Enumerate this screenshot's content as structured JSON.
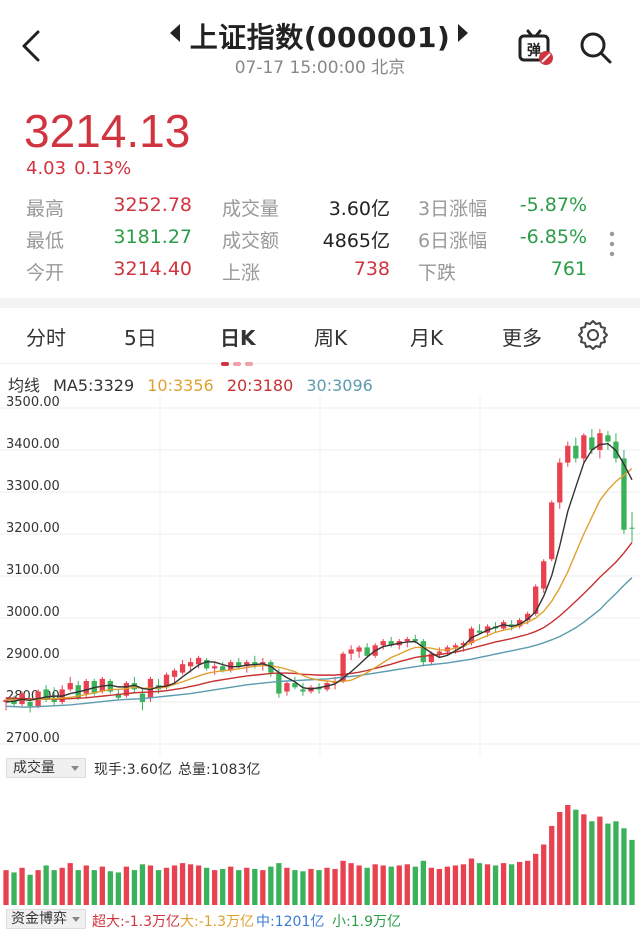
{
  "header": {
    "title": "上证指数(000001)",
    "datetime": "07-17 15:00:00 北京",
    "danmu_label": "弹"
  },
  "quote": {
    "price": "3214.13",
    "change": "4.03",
    "change_pct": "0.13%"
  },
  "stats": [
    [
      {
        "label": "最高",
        "value": "3252.78",
        "color": "red"
      },
      {
        "label": "成交量",
        "value": "3.60亿",
        "color": "dark"
      },
      {
        "label": "3日涨幅",
        "value": "-5.87%",
        "color": "green"
      }
    ],
    [
      {
        "label": "最低",
        "value": "3181.27",
        "color": "green"
      },
      {
        "label": "成交额",
        "value": "4865亿",
        "color": "dark"
      },
      {
        "label": "6日涨幅",
        "value": "-6.85%",
        "color": "green"
      }
    ],
    [
      {
        "label": "今开",
        "value": "3214.40",
        "color": "red"
      },
      {
        "label": "上涨",
        "value": "738",
        "color": "red"
      },
      {
        "label": "下跌",
        "value": "761",
        "color": "green"
      }
    ]
  ],
  "tabs": [
    {
      "label": "分时",
      "active": false
    },
    {
      "label": "5日",
      "active": false
    },
    {
      "label": "日K",
      "active": true
    },
    {
      "label": "周K",
      "active": false
    },
    {
      "label": "月K",
      "active": false
    },
    {
      "label": "更多",
      "active": false
    }
  ],
  "ma_legend": {
    "title": "均线",
    "items": [
      {
        "text": "MA5:3329",
        "color": "#333333"
      },
      {
        "text": "10:3356",
        "color": "#e0a030"
      },
      {
        "text": "20:3180",
        "color": "#c83030"
      },
      {
        "text": "30:3096",
        "color": "#5b9bb0"
      }
    ]
  },
  "colors": {
    "up": "#e8414f",
    "down": "#3ab25a",
    "red_text": "#d0343f",
    "green_text": "#2a9d47"
  },
  "chart_data": {
    "type": "candlestick",
    "y_ticks": [
      "3500.00",
      "3400.00",
      "3300.00",
      "3200.00",
      "3100.00",
      "3000.00",
      "2900.00",
      "2800.00",
      "2700.00"
    ],
    "ylim": [
      2700,
      3500
    ],
    "ohlc": [
      [
        2800,
        2810,
        2780,
        2805
      ],
      [
        2810,
        2815,
        2790,
        2795
      ],
      [
        2795,
        2825,
        2790,
        2820
      ],
      [
        2800,
        2810,
        2775,
        2790
      ],
      [
        2790,
        2830,
        2785,
        2825
      ],
      [
        2830,
        2840,
        2800,
        2805
      ],
      [
        2810,
        2835,
        2790,
        2800
      ],
      [
        2800,
        2840,
        2795,
        2830
      ],
      [
        2830,
        2860,
        2825,
        2845
      ],
      [
        2840,
        2850,
        2805,
        2810
      ],
      [
        2820,
        2855,
        2810,
        2850
      ],
      [
        2850,
        2855,
        2815,
        2820
      ],
      [
        2825,
        2860,
        2820,
        2855
      ],
      [
        2850,
        2855,
        2820,
        2825
      ],
      [
        2820,
        2830,
        2805,
        2810
      ],
      [
        2815,
        2850,
        2810,
        2845
      ],
      [
        2845,
        2860,
        2820,
        2830
      ],
      [
        2820,
        2835,
        2780,
        2800
      ],
      [
        2810,
        2860,
        2800,
        2855
      ],
      [
        2840,
        2855,
        2820,
        2830
      ],
      [
        2835,
        2870,
        2830,
        2865
      ],
      [
        2860,
        2880,
        2845,
        2875
      ],
      [
        2870,
        2900,
        2865,
        2890
      ],
      [
        2885,
        2905,
        2870,
        2895
      ],
      [
        2890,
        2910,
        2880,
        2905
      ],
      [
        2900,
        2905,
        2875,
        2880
      ],
      [
        2880,
        2895,
        2865,
        2885
      ],
      [
        2885,
        2895,
        2870,
        2875
      ],
      [
        2875,
        2900,
        2870,
        2895
      ],
      [
        2895,
        2905,
        2880,
        2885
      ],
      [
        2885,
        2900,
        2870,
        2895
      ],
      [
        2895,
        2910,
        2880,
        2890
      ],
      [
        2890,
        2905,
        2875,
        2895
      ],
      [
        2895,
        2900,
        2860,
        2870
      ],
      [
        2870,
        2880,
        2810,
        2820
      ],
      [
        2825,
        2850,
        2815,
        2845
      ],
      [
        2845,
        2860,
        2830,
        2835
      ],
      [
        2830,
        2845,
        2815,
        2825
      ],
      [
        2825,
        2840,
        2820,
        2835
      ],
      [
        2835,
        2845,
        2820,
        2830
      ],
      [
        2830,
        2850,
        2825,
        2845
      ],
      [
        2845,
        2860,
        2830,
        2850
      ],
      [
        2850,
        2920,
        2845,
        2915
      ],
      [
        2915,
        2935,
        2900,
        2925
      ],
      [
        2920,
        2935,
        2905,
        2930
      ],
      [
        2930,
        2940,
        2905,
        2910
      ],
      [
        2910,
        2940,
        2905,
        2935
      ],
      [
        2935,
        2950,
        2925,
        2945
      ],
      [
        2945,
        2955,
        2930,
        2935
      ],
      [
        2935,
        2950,
        2925,
        2945
      ],
      [
        2945,
        2955,
        2930,
        2950
      ],
      [
        2950,
        2960,
        2940,
        2945
      ],
      [
        2945,
        2950,
        2885,
        2895
      ],
      [
        2895,
        2920,
        2890,
        2915
      ],
      [
        2915,
        2930,
        2905,
        2920
      ],
      [
        2920,
        2935,
        2910,
        2930
      ],
      [
        2930,
        2940,
        2915,
        2935
      ],
      [
        2935,
        2945,
        2920,
        2940
      ],
      [
        2940,
        2980,
        2935,
        2975
      ],
      [
        2970,
        2985,
        2960,
        2965
      ],
      [
        2965,
        2985,
        2955,
        2980
      ],
      [
        2980,
        2990,
        2965,
        2975
      ],
      [
        2975,
        2995,
        2970,
        2990
      ],
      [
        2985,
        2995,
        2970,
        2980
      ],
      [
        2980,
        3000,
        2975,
        2995
      ],
      [
        2995,
        3015,
        2985,
        3010
      ],
      [
        3010,
        3080,
        3005,
        3075
      ],
      [
        3070,
        3140,
        3060,
        3135
      ],
      [
        3140,
        3280,
        3135,
        3275
      ],
      [
        3275,
        3380,
        3260,
        3370
      ],
      [
        3370,
        3420,
        3360,
        3410
      ],
      [
        3410,
        3430,
        3370,
        3380
      ],
      [
        3380,
        3440,
        3370,
        3435
      ],
      [
        3430,
        3450,
        3390,
        3400
      ],
      [
        3400,
        3450,
        3380,
        3440
      ],
      [
        3435,
        3445,
        3400,
        3420
      ],
      [
        3420,
        3440,
        3370,
        3380
      ],
      [
        3380,
        3400,
        3200,
        3210
      ],
      [
        3215,
        3253,
        3181,
        3214
      ]
    ],
    "ma5": [
      2800,
      2802,
      2806,
      2804,
      2808,
      2812,
      2814,
      2814,
      2820,
      2824,
      2829,
      2834,
      2838,
      2840,
      2836,
      2836,
      2840,
      2832,
      2830,
      2836,
      2838,
      2845,
      2860,
      2874,
      2888,
      2896,
      2895,
      2889,
      2884,
      2884,
      2888,
      2889,
      2891,
      2885,
      2870,
      2858,
      2848,
      2834,
      2831,
      2834,
      2838,
      2843,
      2857,
      2872,
      2889,
      2907,
      2922,
      2932,
      2936,
      2940,
      2943,
      2944,
      2930,
      2917,
      2906,
      2911,
      2922,
      2933,
      2953,
      2962,
      2971,
      2978,
      2984,
      2980,
      2985,
      2997,
      3015,
      3052,
      3101,
      3172,
      3254,
      3312,
      3369,
      3400,
      3413,
      3415,
      3399,
      3366,
      3329
    ],
    "ma10": [
      2805,
      2805,
      2805,
      2806,
      2806,
      2807,
      2808,
      2809,
      2811,
      2814,
      2818,
      2822,
      2826,
      2830,
      2830,
      2832,
      2835,
      2833,
      2833,
      2833,
      2836,
      2842,
      2848,
      2855,
      2862,
      2868,
      2872,
      2874,
      2876,
      2879,
      2882,
      2885,
      2887,
      2886,
      2883,
      2878,
      2872,
      2863,
      2856,
      2852,
      2850,
      2848,
      2849,
      2852,
      2860,
      2870,
      2882,
      2894,
      2906,
      2914,
      2923,
      2930,
      2930,
      2928,
      2924,
      2924,
      2928,
      2932,
      2942,
      2950,
      2958,
      2966,
      2971,
      2975,
      2983,
      2990,
      3000,
      3016,
      3040,
      3072,
      3110,
      3155,
      3200,
      3240,
      3280,
      3305,
      3325,
      3340,
      3356
    ],
    "ma20": [
      2810,
      2809,
      2808,
      2808,
      2807,
      2807,
      2807,
      2807,
      2808,
      2809,
      2810,
      2812,
      2814,
      2816,
      2818,
      2820,
      2822,
      2823,
      2824,
      2825,
      2827,
      2830,
      2833,
      2837,
      2841,
      2846,
      2850,
      2853,
      2856,
      2859,
      2862,
      2864,
      2866,
      2868,
      2869,
      2869,
      2868,
      2866,
      2865,
      2864,
      2864,
      2864,
      2866,
      2868,
      2871,
      2875,
      2880,
      2885,
      2890,
      2896,
      2901,
      2906,
      2909,
      2911,
      2913,
      2916,
      2919,
      2923,
      2928,
      2933,
      2938,
      2943,
      2947,
      2951,
      2956,
      2961,
      2968,
      2977,
      2990,
      3005,
      3022,
      3040,
      3058,
      3077,
      3097,
      3115,
      3133,
      3155,
      3180
    ],
    "ma30": [
      2790,
      2789,
      2788,
      2788,
      2789,
      2790,
      2791,
      2792,
      2793,
      2795,
      2797,
      2799,
      2801,
      2803,
      2805,
      2806,
      2807,
      2808,
      2810,
      2812,
      2814,
      2816,
      2818,
      2820,
      2823,
      2826,
      2829,
      2832,
      2835,
      2838,
      2841,
      2843,
      2845,
      2847,
      2849,
      2850,
      2851,
      2852,
      2853,
      2854,
      2855,
      2857,
      2859,
      2861,
      2863,
      2866,
      2869,
      2872,
      2875,
      2878,
      2881,
      2884,
      2887,
      2889,
      2891,
      2893,
      2896,
      2899,
      2902,
      2906,
      2910,
      2914,
      2918,
      2922,
      2926,
      2930,
      2935,
      2941,
      2948,
      2956,
      2966,
      2977,
      2990,
      3005,
      3020,
      3040,
      3058,
      3078,
      3096
    ]
  },
  "volume": {
    "selector": "成交量",
    "current": "现手:3.60亿",
    "total": "总量:1083亿",
    "values": [
      30,
      28,
      32,
      26,
      30,
      34,
      30,
      32,
      36,
      30,
      34,
      30,
      33,
      29,
      28,
      33,
      30,
      35,
      34,
      30,
      32,
      34,
      36,
      35,
      34,
      32,
      30,
      31,
      33,
      30,
      32,
      31,
      30,
      33,
      36,
      32,
      30,
      29,
      31,
      30,
      32,
      31,
      38,
      36,
      34,
      32,
      35,
      34,
      33,
      34,
      35,
      33,
      38,
      32,
      31,
      33,
      34,
      35,
      40,
      36,
      35,
      34,
      36,
      35,
      37,
      38,
      44,
      52,
      68,
      80,
      86,
      82,
      78,
      72,
      76,
      70,
      72,
      66,
      56
    ]
  },
  "fund_flow": {
    "selector": "资金博弈",
    "items": [
      {
        "text": "超大:-1.3万亿",
        "color": "#d0343f"
      },
      {
        "text": "大:-1.3万亿",
        "color": "#e0a030"
      },
      {
        "text": "中:1201亿",
        "color": "#3b7bd6"
      },
      {
        "text": "小:1.9万亿",
        "color": "#2a9d47"
      }
    ]
  }
}
